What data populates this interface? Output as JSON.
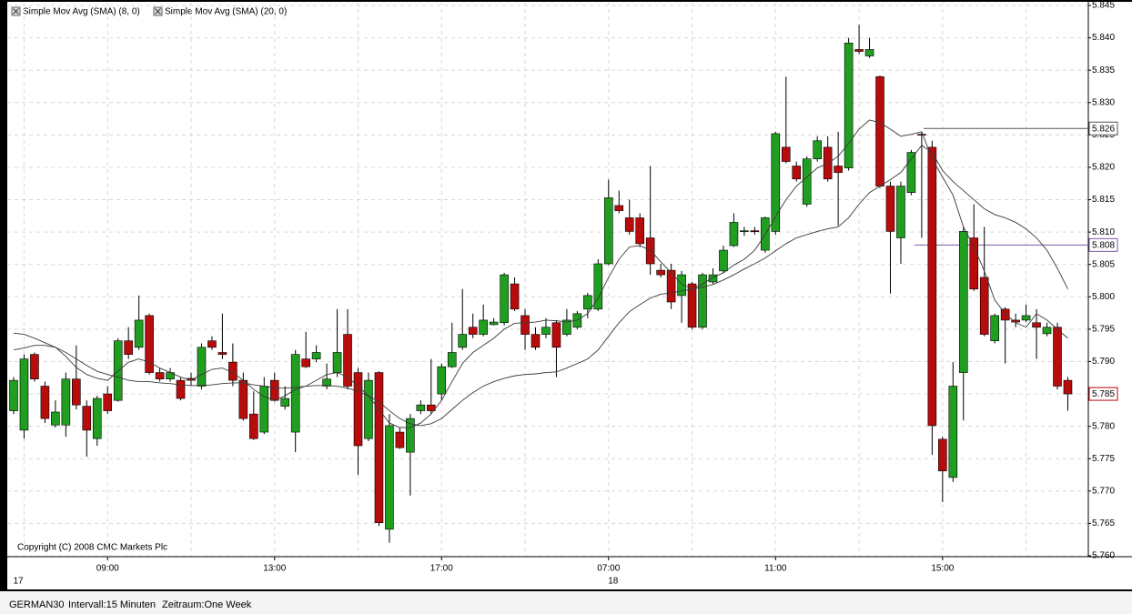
{
  "chart_data": {
    "type": "candlestick",
    "ylim": [
      5.76,
      5.845
    ],
    "yticks": [
      {
        "value": 5.76,
        "label": "5.760"
      },
      5.765,
      {
        "value": 5.77,
        "label": "5.770"
      },
      5.775,
      {
        "value": 5.78,
        "label": "5.780"
      },
      5.785,
      {
        "value": 5.79,
        "label": "5.790"
      },
      5.795,
      {
        "value": 5.8,
        "label": "5.800"
      },
      5.805,
      {
        "value": 5.81,
        "label": "5.810"
      },
      5.815,
      {
        "value": 5.82,
        "label": "5.820"
      },
      5.825,
      {
        "value": 5.83,
        "label": "5.830"
      },
      5.835,
      {
        "value": 5.84,
        "label": "5.840"
      },
      5.845
    ],
    "grid": true,
    "up_color": "#1f9e1f",
    "down_color": "#b80c0c",
    "categories": [
      null,
      null,
      null,
      null,
      null,
      null,
      null,
      null,
      null,
      "09:00",
      null,
      null,
      null,
      null,
      null,
      null,
      null,
      null,
      null,
      null,
      null,
      null,
      null,
      null,
      null,
      "13:00",
      null,
      null,
      null,
      null,
      null,
      null,
      null,
      null,
      null,
      null,
      null,
      null,
      null,
      null,
      null,
      "17:00",
      null,
      null,
      null,
      null,
      null,
      null,
      null,
      null,
      null,
      null,
      null,
      null,
      null,
      null,
      null,
      "07:00",
      null,
      null,
      null,
      null,
      null,
      null,
      null,
      null,
      null,
      null,
      null,
      null,
      null,
      null,
      null,
      "11:00",
      null,
      null,
      null,
      null,
      null,
      null,
      null,
      null,
      null,
      null,
      null,
      null,
      null,
      null,
      null,
      "15:00",
      null,
      null,
      null,
      null,
      null,
      null,
      null,
      null,
      null,
      null,
      null,
      null
    ],
    "date_labels": [
      "17",
      null,
      null,
      null,
      null,
      null,
      null,
      null,
      null,
      null,
      null,
      null,
      null,
      null,
      null,
      null,
      null,
      null,
      null,
      null,
      null,
      null,
      null,
      null,
      null,
      null,
      null,
      null,
      null,
      null,
      null,
      null,
      null,
      null,
      null,
      null,
      null,
      null,
      null,
      null,
      null,
      null,
      null,
      null,
      null,
      null,
      null,
      null,
      null,
      null,
      null,
      null,
      null,
      null,
      null,
      null,
      null,
      "18",
      null,
      null,
      null,
      null,
      null,
      null,
      null,
      null,
      null,
      null,
      null,
      null,
      null,
      null,
      null,
      null,
      null,
      null,
      null,
      null,
      null,
      null,
      null,
      null,
      null,
      null,
      null,
      null,
      null,
      null,
      null,
      null,
      null,
      null,
      null,
      null,
      null,
      null,
      null,
      null,
      null,
      null,
      null,
      null,
      null,
      null
    ],
    "open": [
      5.7824,
      5.7794,
      5.7911,
      5.7862,
      5.7802,
      5.7802,
      5.7873,
      5.7831,
      5.7781,
      5.785,
      5.784,
      5.7932,
      5.7922,
      5.7971,
      5.7883,
      5.7873,
      5.7871,
      5.7874,
      5.7862,
      5.7932,
      5.7914,
      5.7899,
      5.7871,
      5.7819,
      5.7791,
      5.7871,
      5.7831,
      5.7791,
      5.7904,
      5.7904,
      5.7862,
      5.7883,
      5.7942,
      5.7883,
      5.7781,
      5.7883,
      5.7641,
      5.7791,
      5.776,
      5.7824,
      5.7833,
      5.785,
      5.7892,
      5.7922,
      5.7953,
      5.7942,
      5.7957,
      5.796,
      5.802,
      5.7971,
      5.7942,
      5.7942,
      5.796,
      5.7942,
      5.7953,
      5.7981,
      5.7981,
      5.8051,
      5.8141,
      5.8122,
      5.8122,
      5.8091,
      5.8041,
      5.8041,
      5.8002,
      5.802,
      5.7953,
      5.8023,
      5.804,
      5.8079,
      5.8101,
      5.8102,
      5.8072,
      5.8101,
      5.8231,
      5.8202,
      5.8143,
      5.8213,
      5.8231,
      5.8202,
      5.8199,
      5.8382,
      5.8372,
      5.834,
      5.8171,
      5.8091,
      5.8161,
      5.8251,
      5.8231,
      5.778,
      5.7721,
      5.7883,
      5.8091,
      5.803,
      5.7932,
      5.7981,
      5.7964,
      5.7964,
      5.796,
      5.7943,
      5.7953,
      5.7871
    ],
    "high": [
      5.7876,
      5.7911,
      5.7914,
      5.7869,
      5.784,
      5.7883,
      5.7925,
      5.784,
      5.7847,
      5.7862,
      5.7936,
      5.7953,
      5.8002,
      5.7974,
      5.789,
      5.789,
      5.7876,
      5.7883,
      5.7928,
      5.7939,
      5.7974,
      5.7928,
      5.7883,
      5.7854,
      5.7876,
      5.7883,
      5.7862,
      5.7918,
      5.7946,
      5.7925,
      5.7897,
      5.7981,
      5.7981,
      5.789,
      5.7883,
      5.7885,
      5.7819,
      5.7798,
      5.7819,
      5.784,
      5.7904,
      5.7897,
      5.796,
      5.8012,
      5.7974,
      5.7988,
      5.7967,
      5.8037,
      5.803,
      5.7981,
      5.7953,
      5.7967,
      5.7964,
      5.7981,
      5.7978,
      5.8006,
      5.8058,
      5.8181,
      5.8164,
      5.815,
      5.8129,
      5.8202,
      5.8051,
      5.8051,
      5.804,
      5.8023,
      5.8037,
      5.8044,
      5.8079,
      5.8129,
      5.8108,
      5.8108,
      5.8124,
      5.8255,
      5.834,
      5.8209,
      5.8217,
      5.8248,
      5.8248,
      5.8255,
      5.84,
      5.842,
      5.84,
      5.8342,
      5.8178,
      5.8178,
      5.8227,
      5.8255,
      5.8241,
      5.7784,
      5.7899,
      5.8108,
      5.8143,
      5.8108,
      5.7974,
      5.7984,
      5.7974,
      5.7988,
      5.7981,
      5.796,
      5.796,
      5.7876
    ],
    "low": [
      5.7819,
      5.7781,
      5.7869,
      5.7805,
      5.7798,
      5.7784,
      5.7826,
      5.7753,
      5.777,
      5.7819,
      5.7838,
      5.7904,
      5.7918,
      5.788,
      5.7869,
      5.7869,
      5.784,
      5.7862,
      5.7857,
      5.7918,
      5.7904,
      5.7862,
      5.7809,
      5.7779,
      5.7788,
      5.7838,
      5.7826,
      5.776,
      5.789,
      5.7899,
      5.7857,
      5.7876,
      5.7857,
      5.7725,
      5.7777,
      5.7646,
      5.762,
      5.7765,
      5.7693,
      5.7819,
      5.7819,
      5.784,
      5.789,
      5.7918,
      5.7936,
      5.7939,
      5.7956,
      5.7956,
      5.7978,
      5.7918,
      5.7918,
      5.7936,
      5.7876,
      5.7939,
      5.795,
      5.7967,
      5.7978,
      5.8049,
      5.8129,
      5.8096,
      5.8077,
      5.8034,
      5.803,
      5.7981,
      5.796,
      5.795,
      5.795,
      5.802,
      5.8037,
      5.8077,
      5.8094,
      5.8096,
      5.8068,
      5.8096,
      5.8206,
      5.8178,
      5.8139,
      5.8209,
      5.8178,
      5.811,
      5.8195,
      5.8375,
      5.8369,
      5.8168,
      5.8005,
      5.8051,
      5.8157,
      5.8091,
      5.7756,
      5.7683,
      5.7714,
      5.7809,
      5.8009,
      5.7939,
      5.7928,
      5.7897,
      5.7953,
      5.7961,
      5.7904,
      5.7939,
      5.7857,
      5.7824
    ],
    "close": [
      5.7871,
      5.7904,
      5.7873,
      5.7812,
      5.7822,
      5.7873,
      5.7833,
      5.7794,
      5.7843,
      5.7824,
      5.7932,
      5.7911,
      5.7964,
      5.7883,
      5.7873,
      5.7883,
      5.7843,
      5.7871,
      5.7922,
      5.7922,
      5.7911,
      5.7871,
      5.7812,
      5.7781,
      5.7862,
      5.784,
      5.7843,
      5.7911,
      5.7892,
      5.7914,
      5.7873,
      5.7914,
      5.7862,
      5.777,
      5.7871,
      5.7651,
      5.7801,
      5.7767,
      5.7812,
      5.7833,
      5.7824,
      5.7892,
      5.7914,
      5.7942,
      5.7942,
      5.7964,
      5.7961,
      5.8034,
      5.7981,
      5.7942,
      5.7922,
      5.7953,
      5.7922,
      5.7964,
      5.7974,
      5.8002,
      5.8051,
      5.8153,
      5.8133,
      5.8101,
      5.8082,
      5.8051,
      5.8034,
      5.7992,
      5.8034,
      5.7953,
      5.8034,
      5.8034,
      5.8072,
      5.8115,
      5.8102,
      5.8101,
      5.8122,
      5.8252,
      5.8209,
      5.8182,
      5.8213,
      5.8241,
      5.8182,
      5.8192,
      5.8392,
      5.8379,
      5.8382,
      5.8171,
      5.8101,
      5.8171,
      5.8223,
      5.825,
      5.7801,
      5.7731,
      5.7862,
      5.8101,
      5.8012,
      5.7942,
      5.7971,
      5.7964,
      5.7961,
      5.7971,
      5.7953,
      5.7953,
      5.7862,
      5.785
    ],
    "series": [
      {
        "name": "Simple Mov Avg (SMA) (8, 0)",
        "color": "#3a3a3a",
        "values": [
          5.7944,
          5.7942,
          5.7936,
          5.7929,
          5.7922,
          5.7908,
          5.7891,
          5.788,
          5.7874,
          5.7871,
          5.7885,
          5.7899,
          5.7904,
          5.7899,
          5.789,
          5.7883,
          5.7876,
          5.7871,
          5.788,
          5.7888,
          5.789,
          5.7883,
          5.7871,
          5.7857,
          5.7846,
          5.784,
          5.7847,
          5.7857,
          5.7862,
          5.7871,
          5.788,
          5.7883,
          5.7876,
          5.7862,
          5.7847,
          5.7826,
          5.7805,
          5.7798,
          5.7798,
          5.7805,
          5.7819,
          5.784,
          5.7869,
          5.7897,
          5.7914,
          5.7925,
          5.7936,
          5.795,
          5.7959,
          5.796,
          5.7961,
          5.7964,
          5.7963,
          5.7961,
          5.7964,
          5.7974,
          5.7998,
          5.803,
          5.8058,
          5.8077,
          5.8079,
          5.8072,
          5.8054,
          5.8037,
          5.802,
          5.8012,
          5.802,
          5.803,
          5.8037,
          5.8049,
          5.8058,
          5.8072,
          5.8096,
          5.8124,
          5.815,
          5.8171,
          5.8185,
          5.8199,
          5.8206,
          5.8217,
          5.8237,
          5.8259,
          5.8273,
          5.8269,
          5.8259,
          5.8248,
          5.8251,
          5.8255,
          5.8213,
          5.8185,
          5.8157,
          5.8108,
          5.8077,
          5.804,
          5.7995,
          5.7974,
          5.796,
          5.7953,
          5.7974,
          5.7964,
          5.795,
          5.7936
        ]
      },
      {
        "name": "Simple Mov Avg (SMA) (20, 0)",
        "color": "#3a3a3a",
        "values": [
          5.7918,
          5.7921,
          5.7925,
          5.7925,
          5.7922,
          5.7914,
          5.7904,
          5.7894,
          5.7885,
          5.788,
          5.7876,
          5.7871,
          5.7869,
          5.7869,
          5.7867,
          5.7866,
          5.7864,
          5.7863,
          5.7863,
          5.7864,
          5.7866,
          5.7867,
          5.7867,
          5.7864,
          5.7862,
          5.7859,
          5.7859,
          5.786,
          5.7862,
          5.7863,
          5.7863,
          5.7862,
          5.7859,
          5.7854,
          5.7847,
          5.7838,
          5.7824,
          5.7812,
          5.7804,
          5.7801,
          5.7804,
          5.7812,
          5.7826,
          5.784,
          5.7852,
          5.7862,
          5.7869,
          5.7874,
          5.7878,
          5.788,
          5.7881,
          5.7883,
          5.7884,
          5.789,
          5.7897,
          5.7904,
          5.7918,
          5.7939,
          5.796,
          5.7977,
          5.7988,
          5.7998,
          5.8004,
          5.8006,
          5.8009,
          5.8012,
          5.8015,
          5.8019,
          5.8026,
          5.8034,
          5.8043,
          5.8051,
          5.806,
          5.8071,
          5.8082,
          5.8091,
          5.8096,
          5.8101,
          5.8105,
          5.8108,
          5.8122,
          5.8143,
          5.8161,
          5.8171,
          5.8181,
          5.8192,
          5.8213,
          5.8234,
          5.8223,
          5.8195,
          5.8178,
          5.8164,
          5.815,
          5.8136,
          5.8127,
          5.8122,
          5.8115,
          5.8105,
          5.8091,
          5.8072,
          5.8044,
          5.8012
        ]
      }
    ],
    "hlines": [
      {
        "value": 5.826,
        "color": "#555555"
      },
      {
        "value": 5.808,
        "color": "#7b5aa0"
      }
    ],
    "last_price": {
      "value": 5.785,
      "color": "#c00000"
    },
    "annotations": [
      "Copyright (C) 2008 CMC Markets Plc"
    ]
  },
  "footer": {
    "symbol": "GERMAN30",
    "interval": "Intervall:15 Minuten",
    "period": "Zeitraum:One Week"
  }
}
